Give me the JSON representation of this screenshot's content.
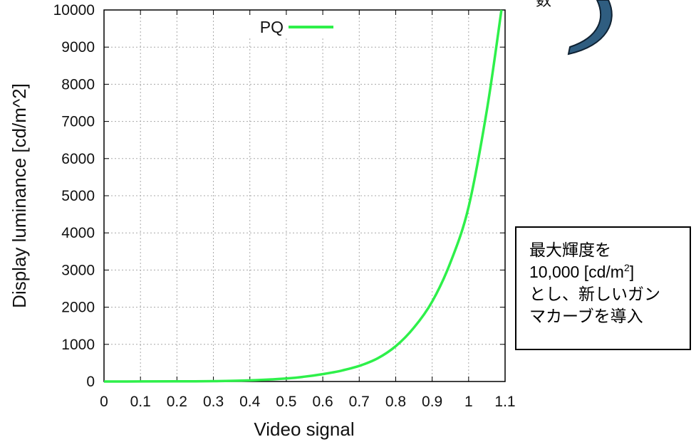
{
  "chart_data": {
    "type": "line",
    "title": "",
    "xlabel": "Video signal",
    "ylabel": "Display luminance [cd/m^2]",
    "xlim": [
      0,
      1.1
    ],
    "ylim": [
      0,
      10000
    ],
    "x_ticks": [
      "0",
      "0.1",
      "0.2",
      "0.3",
      "0.4",
      "0.5",
      "0.6",
      "0.7",
      "0.8",
      "0.9",
      "1",
      "1.1"
    ],
    "y_ticks": [
      "0",
      "1000",
      "2000",
      "3000",
      "4000",
      "5000",
      "6000",
      "7000",
      "8000",
      "9000",
      "10000"
    ],
    "grid": true,
    "legend": "top-center",
    "series": [
      {
        "name": "PQ",
        "color": "#2ef04a",
        "x": [
          0,
          0.1,
          0.2,
          0.3,
          0.4,
          0.5,
          0.55,
          0.6,
          0.65,
          0.7,
          0.75,
          0.8,
          0.85,
          0.9,
          0.95,
          1.0,
          1.05,
          1.09
        ],
        "y": [
          0,
          1,
          3,
          10,
          30,
          80,
          130,
          200,
          290,
          420,
          620,
          950,
          1450,
          2150,
          3200,
          4700,
          7300,
          10000
        ]
      }
    ]
  },
  "callout": {
    "line1": "最大輝度を",
    "line2_prefix": "10,000 [cd/m",
    "line2_sup": "2",
    "line2_suffix": "]",
    "line3": "とし、新しいガン",
    "line4": "マカーブを導入"
  },
  "decoration": {
    "arrow_color": "#2f5d80",
    "glyph": "数"
  }
}
